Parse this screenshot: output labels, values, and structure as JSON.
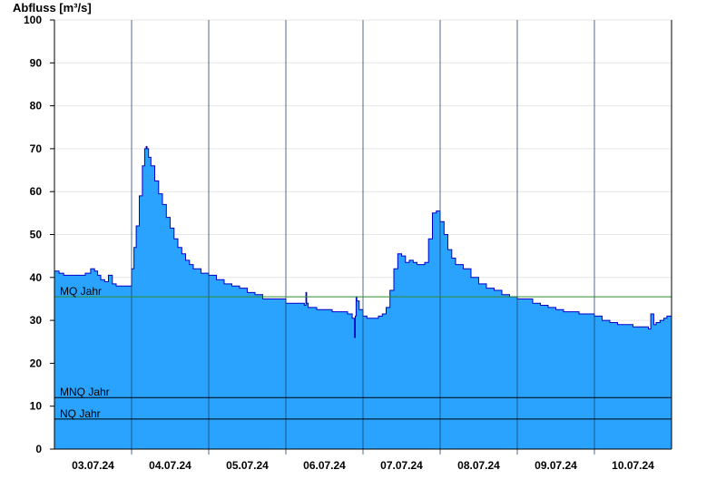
{
  "chart_data": {
    "type": "area",
    "ylabel": "Abfluss [m³/s]",
    "ylim": [
      0,
      100
    ],
    "yticks": [
      0,
      10,
      20,
      30,
      40,
      50,
      60,
      70,
      80,
      90,
      100
    ],
    "xlim": [
      0,
      8
    ],
    "day_labels": [
      "03.07.24",
      "04.07.24",
      "05.07.24",
      "06.07.24",
      "07.07.24",
      "08.07.24",
      "09.07.24",
      "10.07.24"
    ],
    "day_boundaries": [
      1,
      2,
      3,
      4,
      5,
      6,
      7
    ],
    "grid": true,
    "colors": {
      "fill": "#29a3fd",
      "line": "#0000cc",
      "mq": "#2e8b2e",
      "ref": "#000000",
      "grid": "#e6e6e6"
    },
    "reference_lines": [
      {
        "label": "MQ Jahr",
        "value": 35.5
      },
      {
        "label": "MNQ Jahr",
        "value": 12.0
      },
      {
        "label": "NQ Jahr",
        "value": 7.0
      }
    ],
    "series": [
      {
        "x": [
          0,
          0.03,
          0.06,
          0.12,
          0.2,
          0.3,
          0.4,
          0.47,
          0.52,
          0.56,
          0.6,
          0.65,
          0.7,
          0.75,
          0.8,
          0.85,
          0.9,
          0.95,
          1.0,
          1.03,
          1.06,
          1.1,
          1.14,
          1.17,
          1.19,
          1.2,
          1.22,
          1.25,
          1.3,
          1.35,
          1.4,
          1.45,
          1.5,
          1.55,
          1.6,
          1.65,
          1.7,
          1.75,
          1.8,
          1.9,
          2.0,
          2.1,
          2.2,
          2.3,
          2.4,
          2.5,
          2.6,
          2.7,
          2.8,
          2.9,
          3.0,
          3.1,
          3.2,
          3.24,
          3.26,
          3.27,
          3.29,
          3.32,
          3.4,
          3.5,
          3.6,
          3.7,
          3.8,
          3.86,
          3.89,
          3.9,
          3.91,
          3.92,
          3.95,
          4.0,
          4.05,
          4.1,
          4.15,
          4.2,
          4.25,
          4.3,
          4.35,
          4.4,
          4.45,
          4.5,
          4.55,
          4.6,
          4.65,
          4.7,
          4.8,
          4.85,
          4.9,
          4.95,
          5.0,
          5.05,
          5.1,
          5.15,
          5.2,
          5.3,
          5.4,
          5.5,
          5.6,
          5.7,
          5.8,
          5.9,
          6.0,
          6.1,
          6.2,
          6.3,
          6.4,
          6.5,
          6.6,
          6.7,
          6.8,
          6.9,
          7.0,
          7.1,
          7.2,
          7.3,
          7.4,
          7.5,
          7.55,
          7.6,
          7.63,
          7.66,
          7.7,
          7.73,
          7.77,
          7.8,
          7.85,
          7.9,
          7.94,
          8.0
        ],
        "y": [
          41.5,
          41.5,
          41.0,
          40.5,
          40.5,
          40.5,
          41.0,
          42.0,
          41.5,
          40.5,
          39.5,
          39.0,
          40.5,
          38.5,
          38.0,
          38.0,
          38.0,
          38.0,
          42.0,
          47.0,
          52.0,
          59.0,
          66.0,
          70.0,
          70.5,
          70.0,
          68.0,
          66.0,
          62.5,
          59.5,
          57.0,
          54.0,
          51.5,
          49.0,
          47.0,
          45.5,
          44.0,
          43.0,
          42.0,
          41.0,
          40.5,
          39.5,
          38.5,
          38.0,
          37.5,
          36.5,
          36.0,
          35.0,
          35.0,
          35.0,
          34.0,
          34.0,
          34.0,
          33.5,
          36.5,
          34.0,
          33.0,
          33.0,
          32.5,
          32.5,
          32.0,
          32.0,
          31.5,
          30.5,
          26.0,
          31.0,
          35.5,
          34.5,
          32.5,
          31.0,
          30.5,
          30.5,
          30.5,
          31.0,
          31.5,
          33.0,
          37.0,
          42.0,
          45.5,
          45.0,
          43.5,
          44.0,
          43.5,
          43.0,
          43.5,
          49.0,
          55.0,
          55.5,
          53.0,
          50.0,
          46.5,
          44.5,
          43.0,
          42.0,
          40.0,
          38.5,
          37.5,
          37.0,
          36.0,
          35.5,
          35.0,
          35.0,
          34.0,
          33.5,
          33.0,
          32.5,
          32.0,
          32.0,
          31.5,
          31.5,
          31.0,
          30.0,
          29.5,
          29.0,
          29.0,
          28.5,
          28.5,
          28.5,
          28.5,
          28.5,
          28.0,
          31.5,
          29.0,
          29.5,
          30.0,
          30.5,
          31.0,
          30.0
        ]
      }
    ]
  }
}
